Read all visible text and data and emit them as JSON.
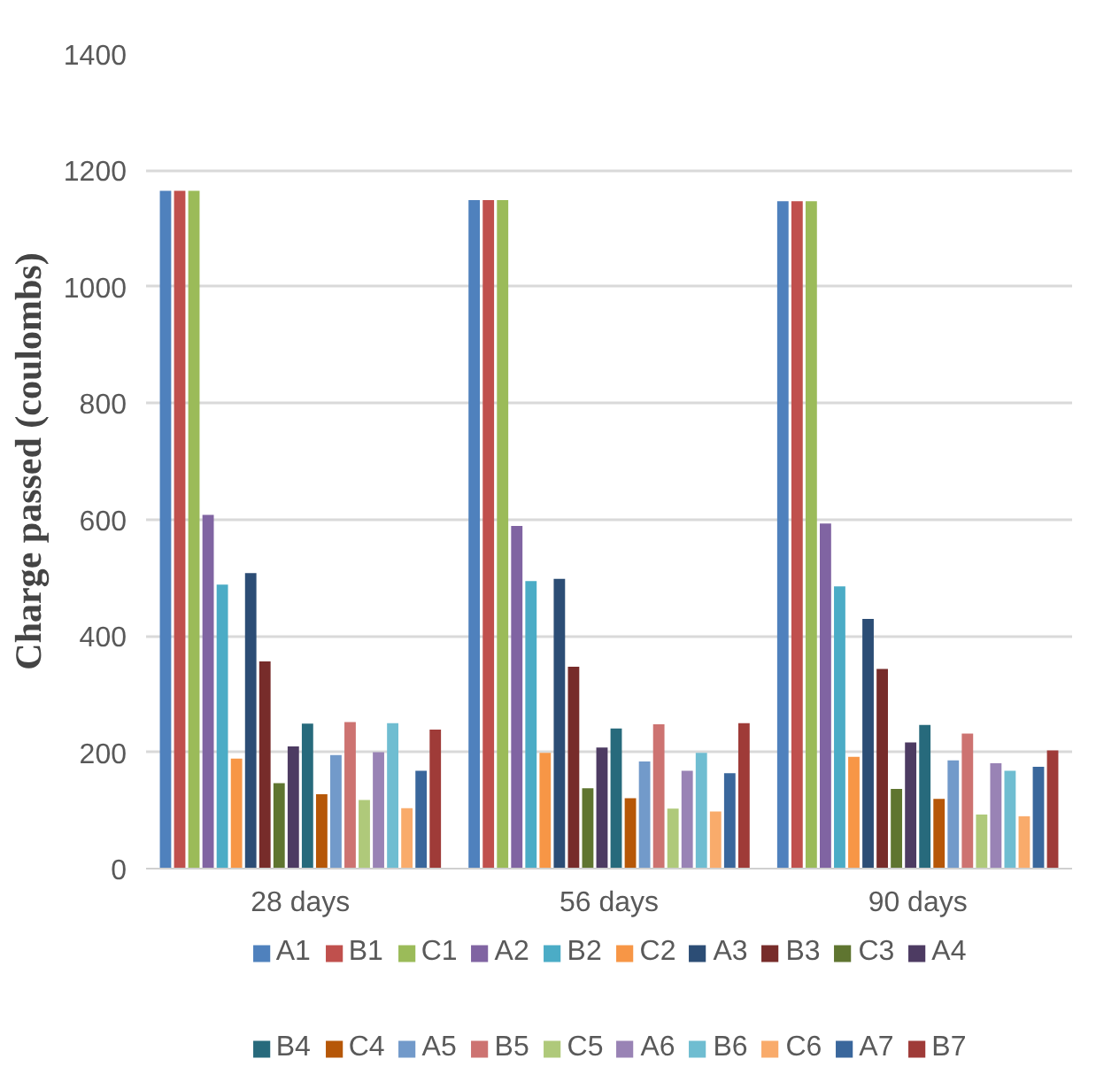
{
  "chart_data": {
    "type": "bar",
    "ylabel": "Charge passed (coulombs)",
    "categories": [
      "28 days",
      "56 days",
      "90 days"
    ],
    "ylim": [
      0,
      1400
    ],
    "yticks": [
      0,
      200,
      400,
      600,
      800,
      1000,
      1200,
      1400
    ],
    "grid": "y",
    "legend": "bottom",
    "series": [
      {
        "name": "A1",
        "color": "#4f81bd",
        "values": [
          1165,
          1149,
          1147
        ]
      },
      {
        "name": "B1",
        "color": "#c0504d",
        "values": [
          1165,
          1149,
          1147
        ]
      },
      {
        "name": "C1",
        "color": "#9bbb59",
        "values": [
          1165,
          1149,
          1147
        ]
      },
      {
        "name": "A2",
        "color": "#8064a2",
        "values": [
          608,
          589,
          593
        ]
      },
      {
        "name": "B2",
        "color": "#4bacc6",
        "values": [
          488,
          494,
          485
        ]
      },
      {
        "name": "C2",
        "color": "#f79646",
        "values": [
          189,
          199,
          192
        ]
      },
      {
        "name": "A3",
        "color": "#2c4d75",
        "values": [
          508,
          498,
          429
        ]
      },
      {
        "name": "B3",
        "color": "#772c2a",
        "values": [
          356,
          347,
          343
        ]
      },
      {
        "name": "C3",
        "color": "#5f7530",
        "values": [
          147,
          138,
          137
        ]
      },
      {
        "name": "A4",
        "color": "#4d3b62",
        "values": [
          210,
          208,
          217
        ]
      },
      {
        "name": "B4",
        "color": "#276a7c",
        "values": [
          249,
          241,
          247
        ]
      },
      {
        "name": "C4",
        "color": "#b65708",
        "values": [
          128,
          121,
          120
        ]
      },
      {
        "name": "A5",
        "color": "#729aca",
        "values": [
          195,
          184,
          186
        ]
      },
      {
        "name": "B5",
        "color": "#cd7371",
        "values": [
          252,
          248,
          232
        ]
      },
      {
        "name": "C5",
        "color": "#afc97a",
        "values": [
          118,
          103,
          93
        ]
      },
      {
        "name": "A6",
        "color": "#9983b5",
        "values": [
          200,
          168,
          181
        ]
      },
      {
        "name": "B6",
        "color": "#6fbdd1",
        "values": [
          250,
          199,
          168
        ]
      },
      {
        "name": "C6",
        "color": "#f9ab6b",
        "values": [
          104,
          98,
          90
        ]
      },
      {
        "name": "A7",
        "color": "#3a679c",
        "values": [
          168,
          164,
          175
        ]
      },
      {
        "name": "B7",
        "color": "#9f3b38",
        "values": [
          239,
          250,
          203
        ]
      }
    ]
  }
}
